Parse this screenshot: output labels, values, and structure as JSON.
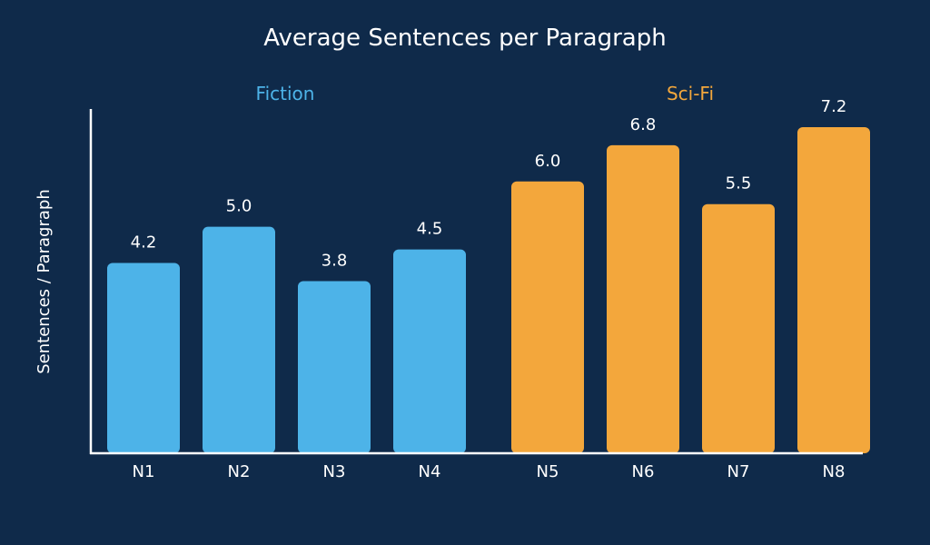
{
  "chart_data": {
    "type": "bar",
    "title": "Average Sentences per Paragraph",
    "xlabel": "",
    "ylabel": "Sentences / Paragraph",
    "ylim": [
      0,
      7.6
    ],
    "grid": false,
    "groups": [
      {
        "name": "Fiction",
        "color": "#4db3e8",
        "categories": [
          "N1",
          "N2",
          "N3",
          "N4"
        ],
        "values": [
          4.2,
          5.0,
          3.8,
          4.5
        ]
      },
      {
        "name": "Sci-Fi",
        "color": "#f3a73c",
        "categories": [
          "N5",
          "N6",
          "N7",
          "N8"
        ],
        "values": [
          6.0,
          6.8,
          5.5,
          7.2
        ]
      }
    ]
  },
  "colors": {
    "background": "#0f2a4a",
    "text": "#ffffff",
    "fiction": "#4db3e8",
    "scifi": "#f3a73c"
  }
}
